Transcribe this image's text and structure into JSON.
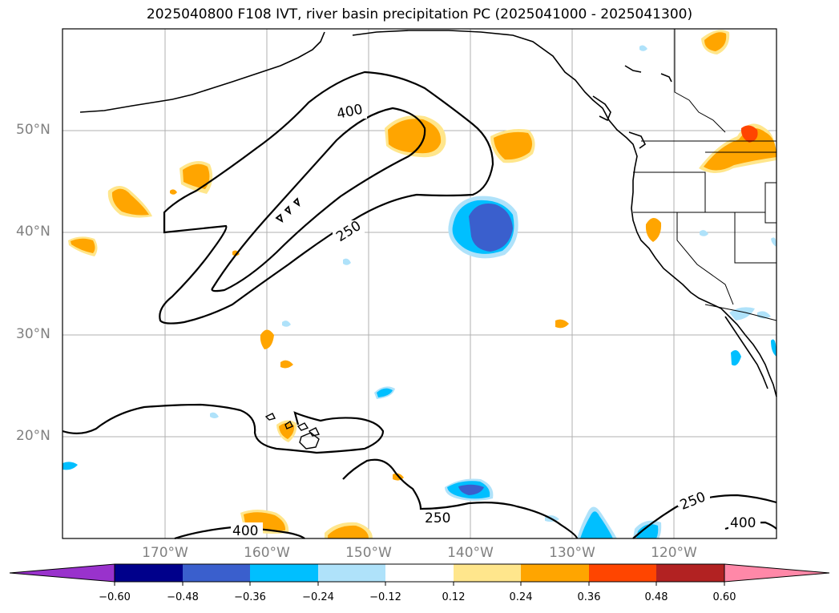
{
  "title": "2025040800 F108 IVT, river basin precipitation PC (2025041000 - 2025041300)",
  "lat_labels": [
    "50°N",
    "40°N",
    "30°N",
    "20°N"
  ],
  "lon_labels": [
    "170°W",
    "160°W",
    "150°W",
    "140°W",
    "130°W",
    "120°W"
  ],
  "contour_labels": [
    "400",
    "250",
    "250",
    "250",
    "400",
    "400"
  ],
  "colorbar": {
    "ticks": [
      "−0.60",
      "−0.48",
      "−0.36",
      "−0.24",
      "−0.12",
      "0.12",
      "0.24",
      "0.36",
      "0.48",
      "0.60"
    ],
    "colors": [
      "#9932cc",
      "#00008b",
      "#3a5fcd",
      "#00bfff",
      "#afe2fa",
      "#ffffff",
      "#ffe68c",
      "#ffa500",
      "#ff4500",
      "#b22222",
      "#ff88a8"
    ]
  },
  "colors": {
    "positive_light": "#ffe68c",
    "positive_mid": "#ffa500",
    "positive_high": "#ff4500",
    "negative_light": "#afe2fa",
    "negative_mid": "#00bfff",
    "negative_high": "#3a5fcd",
    "grid": "#b0b0b0",
    "axis_label": "#808080"
  }
}
